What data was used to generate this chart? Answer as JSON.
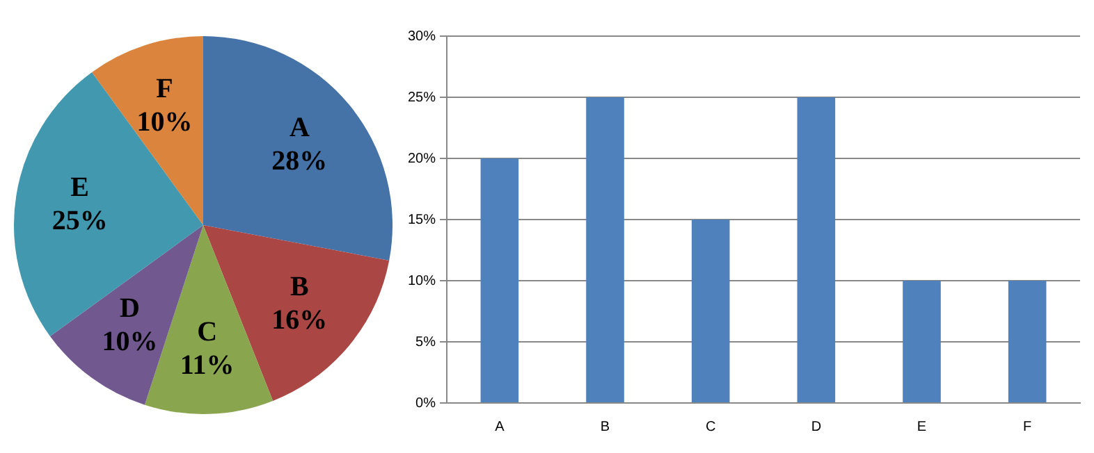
{
  "chart_data": [
    {
      "type": "pie",
      "categories": [
        "A",
        "B",
        "C",
        "D",
        "E",
        "F"
      ],
      "values": [
        28,
        16,
        11,
        10,
        25,
        10
      ],
      "colors": [
        "#4572a7",
        "#aa4643",
        "#89a54e",
        "#71588f",
        "#4198af",
        "#db843d"
      ],
      "value_labels": [
        "28%",
        "16%",
        "11%",
        "10%",
        "25%",
        "10%"
      ]
    },
    {
      "type": "bar",
      "categories": [
        "A",
        "B",
        "C",
        "D",
        "E",
        "F"
      ],
      "values": [
        20,
        25,
        15,
        25,
        10,
        10
      ],
      "color": "#4f81bd",
      "ylim": [
        0,
        30
      ],
      "yticks": [
        {
          "value": 0,
          "label": "0%"
        },
        {
          "value": 5,
          "label": "5%"
        },
        {
          "value": 10,
          "label": "10%"
        },
        {
          "value": 15,
          "label": "15%"
        },
        {
          "value": 20,
          "label": "20%"
        },
        {
          "value": 25,
          "label": "25%"
        },
        {
          "value": 30,
          "label": "30%"
        }
      ],
      "grid": "y"
    }
  ]
}
